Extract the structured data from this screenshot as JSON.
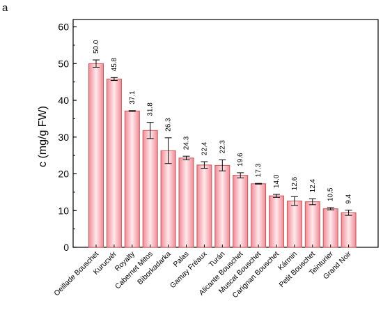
{
  "panel_label": "a",
  "chart_data": {
    "type": "bar",
    "title": "",
    "xlabel": "",
    "ylabel": "c (mg/g FW)",
    "ylim": [
      0,
      62
    ],
    "yticks": [
      0,
      10,
      20,
      30,
      40,
      50,
      60
    ],
    "grid": false,
    "legend": "none",
    "categories": [
      "Oeillade Bouschet",
      "Kurucvér",
      "Royalty",
      "Cabernet Mitos",
      "Bíborkadarka",
      "Palas",
      "Gamay Fréaux",
      "Turán",
      "Alicante Bouschet",
      "Muscat Bouschet",
      "Carignan Bouschet",
      "Kármin",
      "Petit Bouschet",
      "Teinturier",
      "Grand Noir"
    ],
    "values": [
      50.0,
      45.8,
      37.1,
      31.8,
      26.3,
      24.3,
      22.4,
      22.3,
      19.6,
      17.3,
      14.0,
      12.6,
      12.4,
      10.5,
      9.4
    ],
    "value_labels": [
      "50.0",
      "45.8",
      "37.1",
      "31.8",
      "26.3",
      "24.3",
      "22.4",
      "22.3",
      "19.6",
      "17.3",
      "14.0",
      "12.6",
      "12.4",
      "10.5",
      "9.4"
    ],
    "errors": [
      1.0,
      0.4,
      0.1,
      2.2,
      3.5,
      0.5,
      0.9,
      1.5,
      0.7,
      0.1,
      0.4,
      1.2,
      0.8,
      0.3,
      0.7
    ],
    "colors": {
      "bar_edge": "#c25a5a",
      "bar_mid": "#ffe9ec",
      "bar_side": "#f08a96",
      "axis": "#000000"
    }
  }
}
